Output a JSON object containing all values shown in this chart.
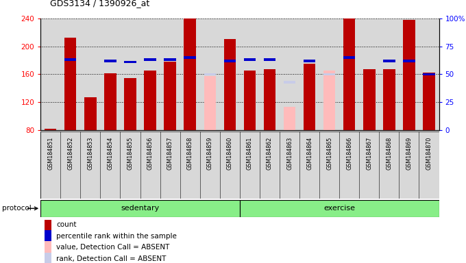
{
  "title": "GDS3134 / 1390926_at",
  "samples": [
    "GSM184851",
    "GSM184852",
    "GSM184853",
    "GSM184854",
    "GSM184855",
    "GSM184856",
    "GSM184857",
    "GSM184858",
    "GSM184859",
    "GSM184860",
    "GSM184861",
    "GSM184862",
    "GSM184863",
    "GSM184864",
    "GSM184865",
    "GSM184866",
    "GSM184867",
    "GSM184868",
    "GSM184869",
    "GSM184870"
  ],
  "count_values": [
    82,
    212,
    127,
    161,
    155,
    165,
    178,
    240,
    null,
    210,
    165,
    167,
    null,
    175,
    null,
    240,
    167,
    167,
    238,
    162
  ],
  "rank_pct": [
    null,
    63,
    null,
    62,
    61,
    63,
    63,
    65,
    null,
    62,
    63,
    63,
    null,
    62,
    null,
    65,
    null,
    62,
    62,
    50
  ],
  "absent_count": [
    null,
    null,
    null,
    null,
    null,
    null,
    null,
    null,
    158,
    null,
    null,
    null,
    113,
    null,
    165,
    null,
    null,
    null,
    null,
    null
  ],
  "absent_rank_pct": [
    null,
    null,
    null,
    null,
    null,
    null,
    null,
    null,
    50,
    null,
    null,
    null,
    43,
    null,
    50,
    null,
    null,
    null,
    null,
    null
  ],
  "absent_rank_pos": [
    null,
    null,
    null,
    null,
    null,
    null,
    null,
    null,
    133,
    null,
    null,
    null,
    133,
    null,
    133,
    null,
    null,
    null,
    null,
    null
  ],
  "sedentary_count": 10,
  "ylim_left": [
    80,
    240
  ],
  "yticks_left": [
    80,
    120,
    160,
    200,
    240
  ],
  "yticks_right": [
    0,
    25,
    50,
    75,
    100
  ],
  "count_color": "#bb0000",
  "rank_color": "#0000cc",
  "absent_count_color": "#ffbbbb",
  "absent_rank_color": "#c8cce8",
  "col_bg": "#d8d8d8",
  "green_color": "#88ee88",
  "white": "#ffffff"
}
